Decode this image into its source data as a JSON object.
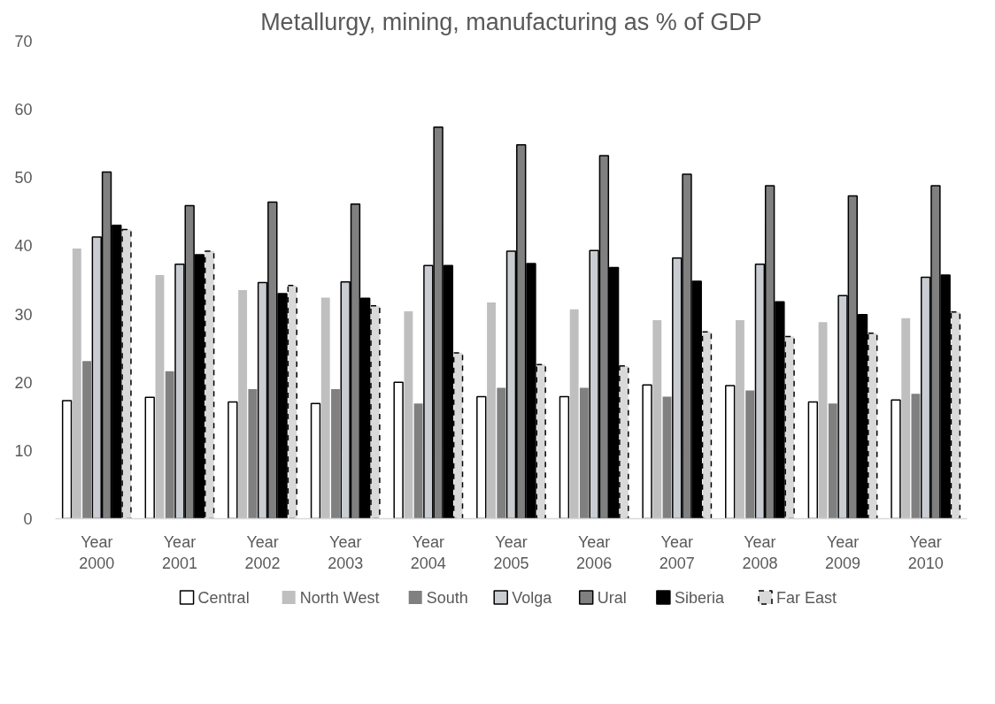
{
  "chart_data": {
    "type": "bar",
    "title": "Metallurgy, mining, manufacturing as % of GDP",
    "categories": [
      "Year 2000",
      "Year 2001",
      "Year 2002",
      "Year 2003",
      "Year 2004",
      "Year 2005",
      "Year 2006",
      "Year 2007",
      "Year 2008",
      "Year 2009",
      "Year 2010"
    ],
    "series": [
      {
        "name": "Central",
        "color": "#ffffff",
        "values": [
          17.3,
          17.8,
          17.1,
          16.9,
          20.0,
          17.9,
          17.9,
          19.6,
          19.5,
          17.1,
          17.4
        ]
      },
      {
        "name": "North West",
        "color": "#bfbfbf",
        "values": [
          39.6,
          35.7,
          33.5,
          32.4,
          30.4,
          31.7,
          30.7,
          29.1,
          29.1,
          28.8,
          29.4
        ]
      },
      {
        "name": "South",
        "color": "#808080",
        "values": [
          23.1,
          21.6,
          19.0,
          19.0,
          16.9,
          19.2,
          19.2,
          17.9,
          18.8,
          16.9,
          18.3
        ]
      },
      {
        "name": "Volga",
        "color": "#c9cdd2",
        "values": [
          41.3,
          37.3,
          34.6,
          34.7,
          37.1,
          39.2,
          39.3,
          38.2,
          37.3,
          32.7,
          35.4
        ]
      },
      {
        "name": "Ural",
        "color": "#808080",
        "values": [
          50.8,
          45.9,
          46.4,
          46.1,
          57.4,
          54.8,
          53.2,
          50.5,
          48.8,
          47.3,
          48.8
        ]
      },
      {
        "name": "Siberia",
        "color": "#000000",
        "values": [
          43.0,
          38.7,
          33.0,
          32.3,
          37.1,
          37.4,
          36.8,
          34.8,
          31.8,
          29.9,
          35.7
        ]
      },
      {
        "name": "Far East",
        "color": "#d9d9d9",
        "values": [
          42.4,
          39.2,
          34.2,
          31.2,
          24.3,
          22.6,
          22.4,
          27.4,
          26.7,
          27.2,
          30.3
        ]
      }
    ],
    "ylim": [
      0,
      70
    ],
    "yticks": [
      0,
      10,
      20,
      30,
      40,
      50,
      60,
      70
    ],
    "legend": "bottom"
  }
}
